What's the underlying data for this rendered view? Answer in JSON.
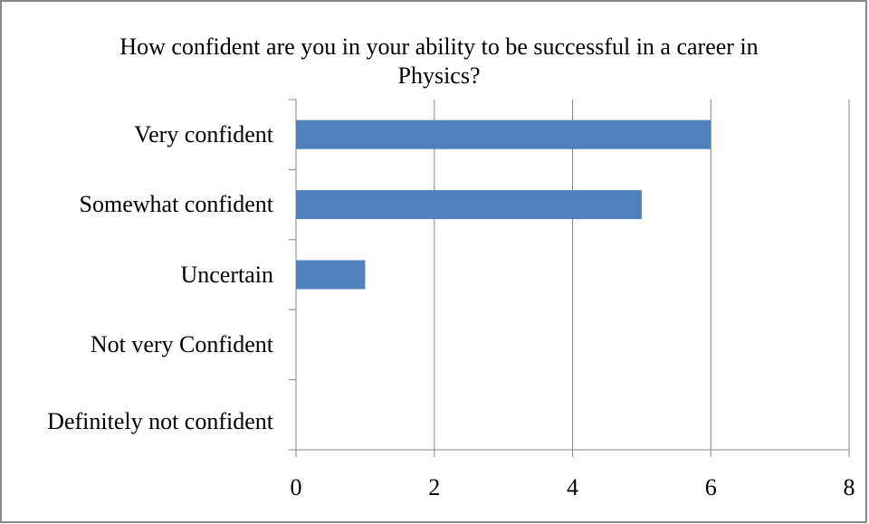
{
  "chart_data": {
    "type": "hbar",
    "title": "How confident are you in your ability to be successful in a career in Physics?",
    "categories": [
      "Very confident",
      "Somewhat confident",
      "Uncertain",
      "Not very Confident",
      "Definitely not confident"
    ],
    "values": [
      6,
      5,
      1,
      0,
      0
    ],
    "color": "#4f81bd",
    "xlim": [
      0,
      8
    ],
    "xticks": [
      0,
      2,
      4,
      6,
      8
    ],
    "grid": true
  }
}
